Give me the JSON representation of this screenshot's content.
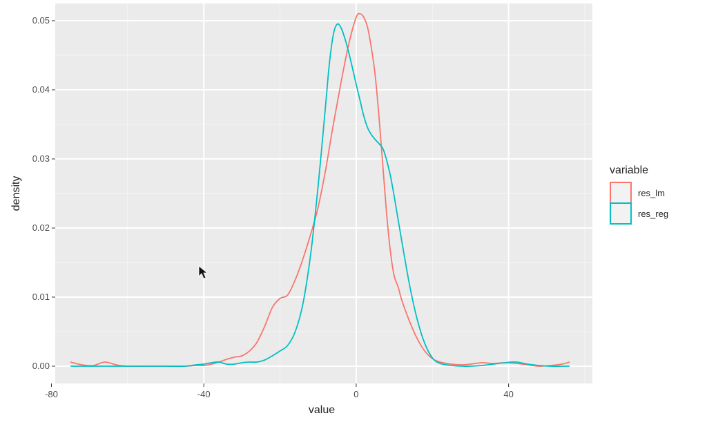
{
  "chart_data": {
    "type": "line",
    "title": "",
    "xlabel": "value",
    "ylabel": "density",
    "xlim": [
      -79,
      62
    ],
    "ylim": [
      -0.0025,
      0.0525
    ],
    "x_ticks": [
      -80,
      -40,
      0,
      40
    ],
    "x_tick_labels": [
      "-80",
      "-40",
      "0",
      "40"
    ],
    "y_ticks": [
      0,
      0.01,
      0.02,
      0.03,
      0.04,
      0.05
    ],
    "y_tick_labels": [
      "0.00",
      "0.01",
      "0.02",
      "0.03",
      "0.04",
      "0.05"
    ],
    "grid": true,
    "legend": {
      "title": "variable",
      "position": "right",
      "entries": [
        "res_lm",
        "res_reg"
      ]
    },
    "series": [
      {
        "name": "res_lm",
        "color": "#F8766D",
        "x": [
          -75,
          -72,
          -69,
          -66,
          -63,
          -60,
          -55,
          -50,
          -45,
          -42,
          -40,
          -38,
          -36,
          -34,
          -32,
          -30,
          -28,
          -26,
          -24,
          -22,
          -20,
          -18,
          -16,
          -14,
          -12,
          -10,
          -8,
          -6,
          -4,
          -2,
          0,
          1,
          2,
          3,
          4,
          5,
          6,
          7,
          8,
          9,
          10,
          11,
          12,
          14,
          16,
          18,
          20,
          22,
          25,
          28,
          30,
          33,
          36,
          39,
          42,
          45,
          48,
          51,
          54,
          56
        ],
        "y": [
          0.0006,
          0.0002,
          0.0001,
          0.0006,
          0.0002,
          0.0,
          0.0,
          0.0,
          0.0,
          0.0001,
          0.0001,
          0.0003,
          0.0006,
          0.001,
          0.0013,
          0.0015,
          0.0022,
          0.0035,
          0.0058,
          0.0085,
          0.0098,
          0.0103,
          0.0125,
          0.0155,
          0.019,
          0.023,
          0.0285,
          0.035,
          0.041,
          0.0465,
          0.0505,
          0.051,
          0.0505,
          0.049,
          0.046,
          0.042,
          0.036,
          0.029,
          0.022,
          0.0165,
          0.013,
          0.0115,
          0.0095,
          0.0065,
          0.004,
          0.0022,
          0.0011,
          0.0006,
          0.0003,
          0.0002,
          0.0003,
          0.0005,
          0.0004,
          0.0005,
          0.0004,
          0.0002,
          0.0,
          0.0001,
          0.0003,
          0.0006
        ]
      },
      {
        "name": "res_reg",
        "color": "#00BFC4",
        "x": [
          -75,
          -70,
          -65,
          -60,
          -55,
          -50,
          -45,
          -42,
          -40,
          -38,
          -36,
          -34,
          -32,
          -30,
          -28,
          -26,
          -24,
          -22,
          -20,
          -18,
          -16,
          -14,
          -12,
          -10,
          -8,
          -7,
          -6,
          -5,
          -4,
          -3,
          -2,
          -1,
          0,
          1,
          2,
          3,
          4,
          5,
          6,
          7,
          8,
          9,
          10,
          12,
          14,
          16,
          18,
          20,
          22,
          25,
          28,
          30,
          33,
          36,
          39,
          42,
          45,
          48,
          51,
          54,
          56
        ],
        "y": [
          0.0,
          0.0,
          0.0,
          0.0,
          0.0,
          0.0,
          0.0,
          0.0002,
          0.0003,
          0.0005,
          0.0006,
          0.0003,
          0.0003,
          0.0005,
          0.0006,
          0.0006,
          0.0009,
          0.0015,
          0.0022,
          0.003,
          0.005,
          0.009,
          0.016,
          0.026,
          0.038,
          0.044,
          0.048,
          0.0495,
          0.049,
          0.0475,
          0.0455,
          0.0432,
          0.0408,
          0.0385,
          0.0362,
          0.0345,
          0.0335,
          0.0328,
          0.0322,
          0.0315,
          0.0298,
          0.0275,
          0.0245,
          0.018,
          0.0118,
          0.0068,
          0.0033,
          0.0012,
          0.0004,
          0.0001,
          0.0,
          0.0,
          0.0001,
          0.0003,
          0.0005,
          0.0006,
          0.0003,
          0.0001,
          0.0,
          0.0,
          0.0
        ]
      }
    ]
  }
}
